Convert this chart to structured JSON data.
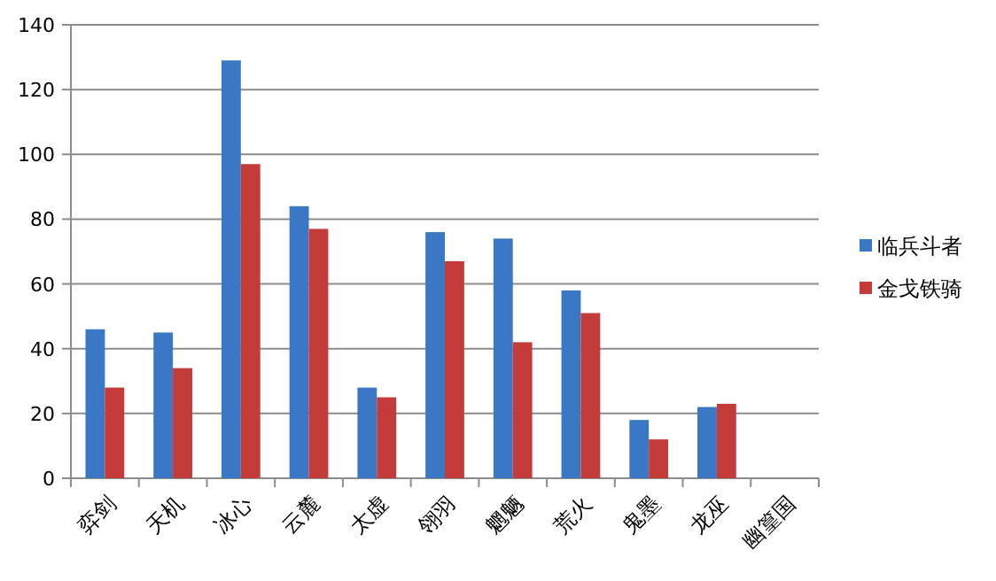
{
  "chart_data": {
    "type": "bar",
    "categories": [
      "弈剑",
      "天机",
      "冰心",
      "云麓",
      "太虚",
      "翎羽",
      "魍魉",
      "荒火",
      "鬼墨",
      "龙巫",
      "幽篁国"
    ],
    "series": [
      {
        "name": "临兵斗者",
        "color": "#3a78c6",
        "values": [
          46,
          45,
          129,
          84,
          28,
          76,
          74,
          58,
          18,
          22,
          null
        ]
      },
      {
        "name": "金戈铁骑",
        "color": "#c43c3a",
        "values": [
          28,
          34,
          97,
          77,
          25,
          67,
          42,
          51,
          12,
          23,
          null
        ]
      }
    ],
    "ylim": [
      0,
      140
    ],
    "yticks": [
      0,
      20,
      40,
      60,
      80,
      100,
      120,
      140
    ],
    "grid": "y",
    "legend": "right"
  }
}
